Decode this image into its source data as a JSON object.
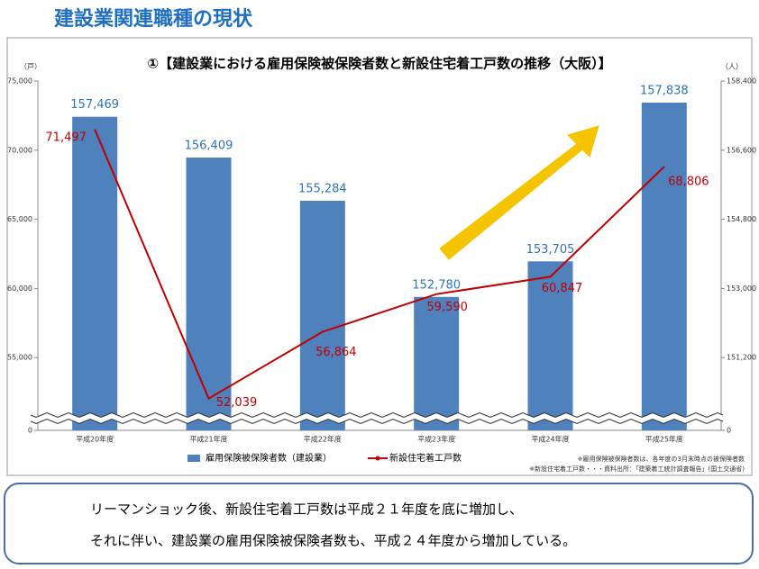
{
  "page_title": "建設業関連職種の現状",
  "chart_data": {
    "type": "bar",
    "title": "①【建設業における雇用保険被保険者数と新設住宅着工戸数の推移（大阪）】",
    "y_unit": "（戸）",
    "y2_unit": "（人）",
    "categories": [
      "平成20年度",
      "平成21年度",
      "平成22年度",
      "平成23年度",
      "平成24年度",
      "平成25年度"
    ],
    "series": [
      {
        "name": "雇用保険被保険者数（建設業）",
        "type": "bar",
        "axis": "y2",
        "color": "#4f81bd",
        "values": [
          157469,
          156409,
          155284,
          152780,
          153705,
          157838
        ],
        "value_labels": [
          "157,469",
          "156,409",
          "155,284",
          "152,780",
          "153,705",
          "157,838"
        ]
      },
      {
        "name": "新設住宅着工戸数",
        "type": "line",
        "color": "#c00000",
        "values": [
          71497,
          52039,
          56864,
          59590,
          60847,
          68806
        ],
        "value_labels": [
          "71,497",
          "52,039",
          "56,864",
          "59,590",
          "60,847",
          "68,806"
        ]
      }
    ],
    "ylim": [
      0,
      75000
    ],
    "y_axis_break": [
      0,
      50000
    ],
    "yticks": [
      0,
      {
        "value": 55000,
        "label": "55,000"
      },
      {
        "value": 60000,
        "label": "60,000"
      },
      {
        "value": 65000,
        "label": "65,000"
      },
      {
        "value": 70000,
        "label": "70,000"
      },
      {
        "value": 75000,
        "label": "75,000"
      }
    ],
    "y2lim": [
      0,
      158400
    ],
    "y2_axis_break": [
      0,
      149400
    ],
    "y2ticks": [
      0,
      {
        "value": 151200,
        "label": "151,200"
      },
      {
        "value": 153000,
        "label": "153,000"
      },
      {
        "value": 154800,
        "label": "154,800"
      },
      {
        "value": 156600,
        "label": "156,600"
      },
      {
        "value": 158400,
        "label": "158,400"
      }
    ],
    "legend": "bottom",
    "notes": [
      "※雇用保険被保険者数は、各年度の3月末時点の被保険者数",
      "※新設住宅着工戸数・・・資料出所：「建築着工統計調査報告」(国土交通省)"
    ]
  },
  "summary": [
    "リーマンショック後、新設住宅着工戸数は平成２１年度を底に増加し、",
    "それに伴い、建設業の雇用保険被保険者数も、平成２４年度から増加している。"
  ]
}
